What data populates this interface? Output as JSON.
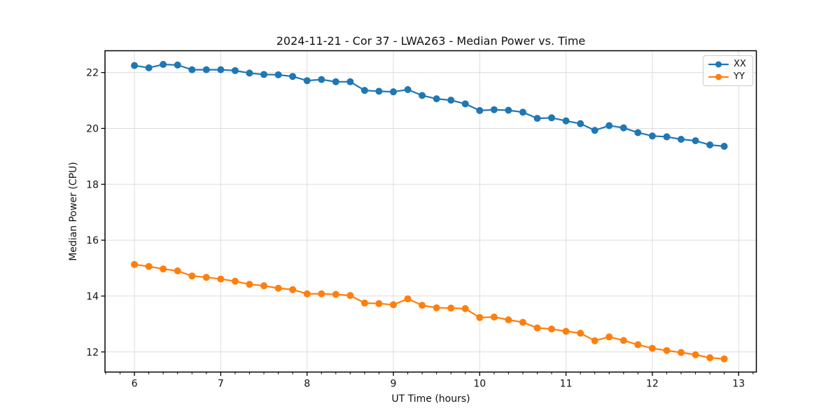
{
  "chart_data": {
    "type": "line",
    "title": "2024-11-21 - Cor 37 - LWA263 - Median Power vs. Time",
    "xlabel": "UT Time (hours)",
    "ylabel": "Median Power (CPU)",
    "xlim": [
      5.659,
      13.205
    ],
    "ylim": [
      11.28,
      22.78
    ],
    "xticks": [
      6,
      7,
      8,
      9,
      10,
      11,
      12,
      13
    ],
    "yticks": [
      12,
      14,
      16,
      18,
      20,
      22
    ],
    "x_minor_step": 0.16667,
    "grid": true,
    "grid_color": "#dcdcdc",
    "background_color": "#ffffff",
    "spine_color": "#000000",
    "text_color": "#111111",
    "legend_position": "upper right",
    "marker": "circle",
    "x": [
      6.0,
      6.167,
      6.333,
      6.5,
      6.667,
      6.833,
      7.0,
      7.167,
      7.333,
      7.5,
      7.667,
      7.833,
      8.0,
      8.167,
      8.333,
      8.5,
      8.667,
      8.833,
      9.0,
      9.167,
      9.333,
      9.5,
      9.667,
      9.833,
      10.0,
      10.167,
      10.333,
      10.5,
      10.667,
      10.833,
      11.0,
      11.167,
      11.333,
      11.5,
      11.667,
      11.833,
      12.0,
      12.167,
      12.333,
      12.5,
      12.667,
      12.833
    ],
    "series": [
      {
        "name": "XX",
        "color": "#1f77b4",
        "values": [
          22.25,
          22.17,
          22.29,
          22.27,
          22.1,
          22.1,
          22.1,
          22.07,
          21.98,
          21.93,
          21.92,
          21.86,
          21.71,
          21.75,
          21.67,
          21.67,
          21.36,
          21.33,
          21.31,
          21.39,
          21.18,
          21.06,
          21.01,
          20.88,
          20.64,
          20.67,
          20.65,
          20.58,
          20.36,
          20.38,
          20.27,
          20.17,
          19.93,
          20.1,
          20.02,
          19.85,
          19.73,
          19.7,
          19.61,
          19.56,
          19.41,
          19.36
        ]
      },
      {
        "name": "YY",
        "color": "#ff7f0e",
        "values": [
          15.13,
          15.06,
          14.97,
          14.9,
          14.72,
          14.67,
          14.61,
          14.53,
          14.42,
          14.37,
          14.28,
          14.23,
          14.08,
          14.08,
          14.06,
          14.02,
          13.75,
          13.73,
          13.69,
          13.9,
          13.67,
          13.58,
          13.57,
          13.55,
          13.23,
          13.25,
          13.15,
          13.06,
          12.86,
          12.82,
          12.74,
          12.67,
          12.4,
          12.54,
          12.41,
          12.26,
          12.13,
          12.05,
          11.98,
          11.9,
          11.79,
          11.75
        ]
      }
    ]
  }
}
